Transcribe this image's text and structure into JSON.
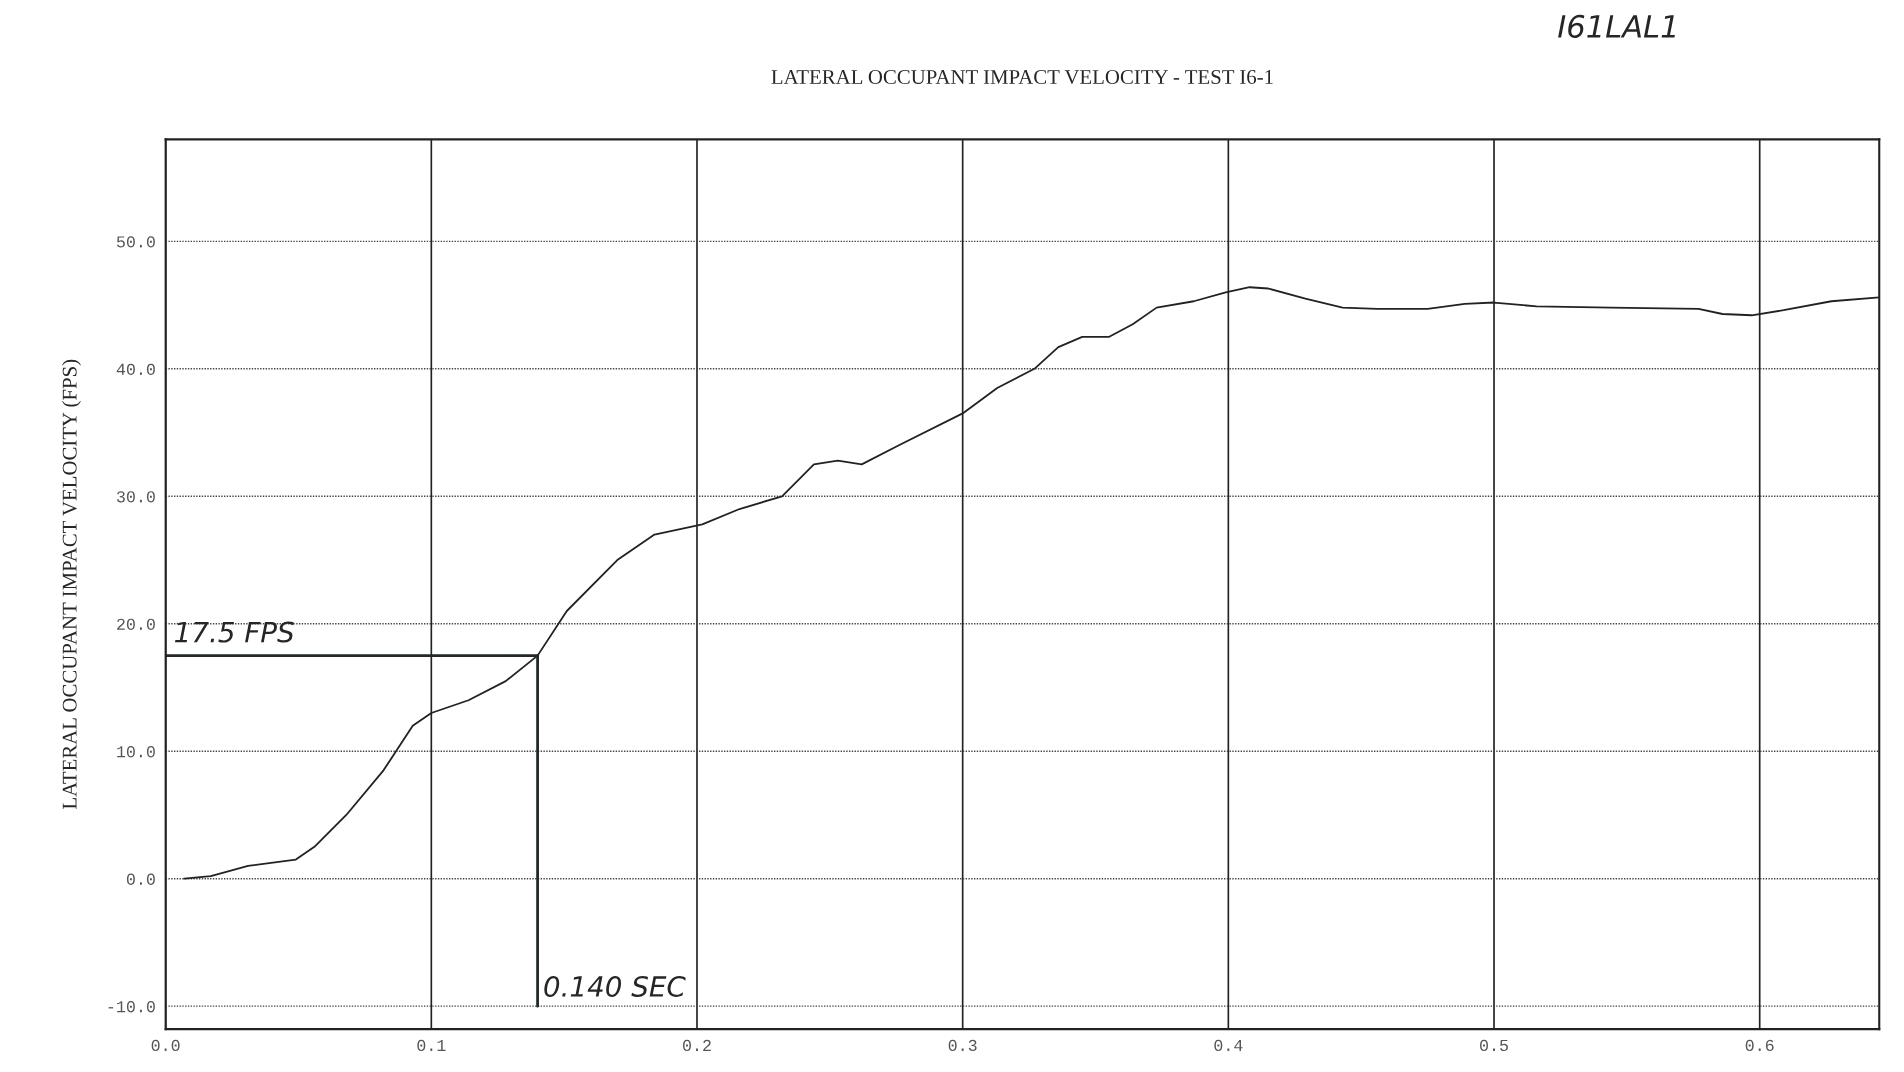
{
  "chart_data": {
    "type": "line",
    "title": "LATERAL OCCUPANT IMPACT VELOCITY - TEST I6-1",
    "ylabel": "LATERAL OCCUPANT IMPACT VELOCITY (FPS)",
    "annotations": [
      "I61LAL1"
    ],
    "series": [
      {
        "color": "#222222",
        "x": [
          0.007,
          0.017,
          0.031,
          0.049,
          0.056,
          0.068,
          0.082,
          0.093,
          0.1,
          0.114,
          0.128,
          0.14,
          0.151,
          0.17,
          0.184,
          0.202,
          0.216,
          0.232,
          0.244,
          0.253,
          0.262,
          0.276,
          0.3,
          0.313,
          0.327,
          0.336,
          0.345,
          0.355,
          0.364,
          0.373,
          0.387,
          0.399,
          0.408,
          0.415,
          0.429,
          0.443,
          0.456,
          0.475,
          0.489,
          0.5,
          0.516,
          0.544,
          0.577,
          0.586,
          0.597,
          0.609,
          0.627,
          0.645
        ],
        "values": [
          0,
          0.2,
          1,
          1.5,
          2.5,
          5,
          8.5,
          12,
          13,
          14,
          15.5,
          17.5,
          21,
          25,
          27,
          27.8,
          29,
          30,
          32.5,
          32.8,
          32.5,
          34,
          36.5,
          38.5,
          40,
          41.7,
          42.5,
          42.5,
          43.5,
          44.8,
          45.3,
          46,
          46.4,
          46.3,
          45.5,
          44.8,
          44.7,
          44.7,
          45.1,
          45.2,
          44.9,
          44.8,
          44.7,
          44.3,
          44.2,
          44.6,
          45.3,
          45.6
        ]
      }
    ],
    "ref_lines": [
      {
        "axis": "y",
        "value": 17.5,
        "label": "17.5 FPS",
        "color": "#1f2a22"
      },
      {
        "axis": "x",
        "value": 0.14,
        "label": "0.140 SEC",
        "color": "#1f2a22"
      }
    ],
    "xlim": [
      0,
      0.645
    ],
    "ylim": [
      -11.8,
      58
    ],
    "xticks": [
      {
        "value": 0,
        "label": "0.0"
      },
      {
        "value": 0.1,
        "label": "0.1"
      },
      {
        "value": 0.2,
        "label": "0.2"
      },
      {
        "value": 0.3,
        "label": "0.3"
      },
      {
        "value": 0.4,
        "label": "0.4"
      },
      {
        "value": 0.5,
        "label": "0.5"
      },
      {
        "value": 0.6,
        "label": "0.6"
      }
    ],
    "yticks": [
      {
        "value": -10,
        "label": "-10.0"
      },
      {
        "value": 0,
        "label": "0.0"
      },
      {
        "value": 10,
        "label": "10.0"
      },
      {
        "value": 20,
        "label": "20.0"
      },
      {
        "value": 30,
        "label": "30.0"
      },
      {
        "value": 40,
        "label": "40.0"
      },
      {
        "value": 50,
        "label": "50.0"
      }
    ],
    "grid": true
  }
}
